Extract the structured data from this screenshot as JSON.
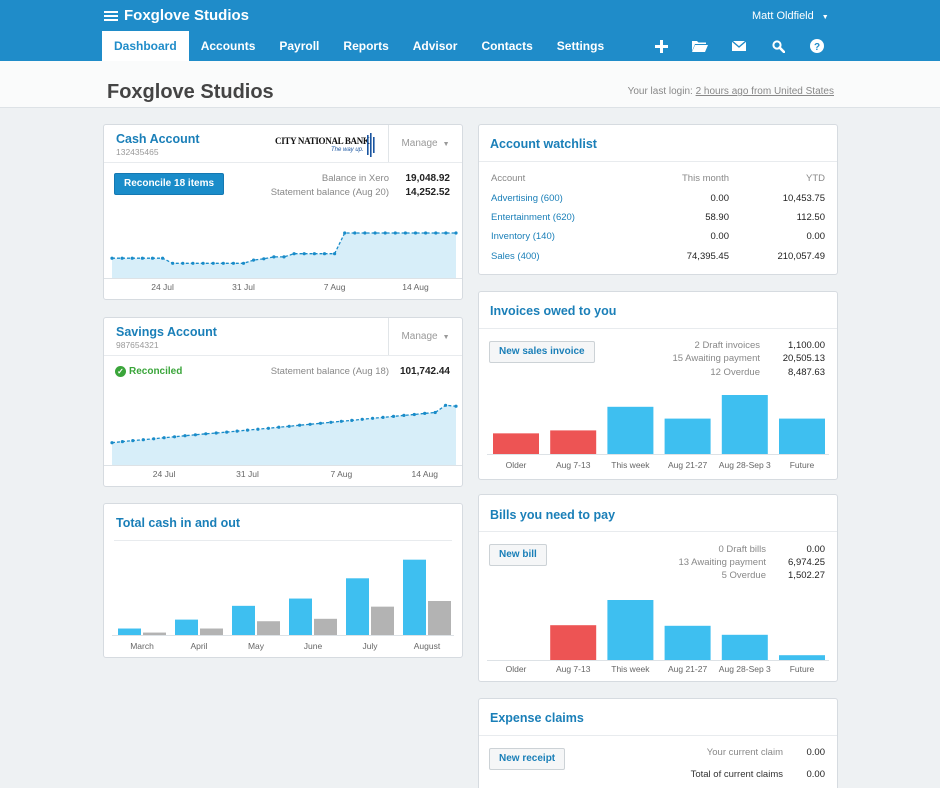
{
  "org": {
    "name": "Foxglove Studios"
  },
  "user": {
    "name": "Matt Oldfield"
  },
  "nav": [
    "Dashboard",
    "Accounts",
    "Payroll",
    "Reports",
    "Advisor",
    "Contacts",
    "Settings"
  ],
  "icons": [
    "plus-icon",
    "folder-icon",
    "mail-icon",
    "search-icon",
    "help-icon"
  ],
  "page": {
    "title": "Foxglove Studios",
    "last_login_prefix": "Your last login: ",
    "last_login_link": "2 hours ago from United States"
  },
  "cash_account": {
    "title": "Cash Account",
    "number": "132435465",
    "bank_name": "CITY NATIONAL BANK",
    "bank_tagline": "The way up.",
    "manage": "Manage",
    "reconcile_button": "Reconcile 18 items",
    "balance_label": "Balance in Xero",
    "balance_value": "19,048.92",
    "statement_label": "Statement balance (Aug 20)",
    "statement_value": "14,252.52",
    "chart_data": {
      "type": "area",
      "series": [
        {
          "values": [
            11200,
            11200,
            11200,
            11200,
            11200,
            11200,
            9600,
            9600,
            9600,
            9600,
            9600,
            9600,
            9600,
            9600,
            10600,
            11000,
            11600,
            11600,
            12600,
            12600,
            12600,
            12600,
            12600,
            19048,
            19048,
            19048,
            19048,
            19048,
            19048,
            19048,
            19048,
            19048,
            19048,
            19048,
            19048
          ]
        }
      ],
      "ticks": [
        "24 Jul",
        "31 Jul",
        "7 Aug",
        "14 Aug"
      ],
      "tick_index": [
        5,
        13,
        22,
        30
      ]
    }
  },
  "savings_account": {
    "title": "Savings Account",
    "number": "987654321",
    "manage": "Manage",
    "status": "Reconciled",
    "statement_label": "Statement balance (Aug 18)",
    "statement_value": "101,742.44",
    "chart_data": {
      "type": "area",
      "series": [
        {
          "values": [
            57000,
            57800,
            58600,
            59300,
            60000,
            60800,
            61500,
            62300,
            63000,
            63800,
            64400,
            65100,
            65800,
            66600,
            67300,
            68000,
            68800,
            69500,
            70300,
            71000,
            71800,
            72500,
            73300,
            74000,
            74800,
            75600,
            76300,
            77000,
            77800,
            78500,
            79300,
            80000,
            85500,
            84800
          ]
        }
      ],
      "ticks": [
        "24 Jul",
        "31 Jul",
        "7 Aug",
        "14 Aug"
      ],
      "tick_index": [
        5,
        13,
        22,
        30
      ]
    }
  },
  "total_cash": {
    "title": "Total cash in and out",
    "chart_data": {
      "type": "bar",
      "categories": [
        "March",
        "April",
        "May",
        "June",
        "July",
        "August"
      ],
      "series": [
        {
          "values": [
            8,
            19,
            36,
            45,
            70,
            93
          ]
        },
        {
          "values": [
            3,
            8,
            17,
            20,
            35,
            42
          ]
        }
      ],
      "ylim": [
        0,
        100
      ]
    }
  },
  "watchlist": {
    "title": "Account watchlist",
    "headers": [
      "Account",
      "This month",
      "YTD"
    ],
    "rows": [
      {
        "account": "Advertising (600)",
        "month": "0.00",
        "ytd": "10,453.75"
      },
      {
        "account": "Entertainment (620)",
        "month": "58.90",
        "ytd": "112.50"
      },
      {
        "account": "Inventory (140)",
        "month": "0.00",
        "ytd": "0.00"
      },
      {
        "account": "Sales (400)",
        "month": "74,395.45",
        "ytd": "210,057.49"
      }
    ]
  },
  "invoices": {
    "title": "Invoices owed to you",
    "button": "New sales invoice",
    "stats": [
      {
        "label": "2 Draft invoices",
        "value": "1,100.00"
      },
      {
        "label": "15 Awaiting payment",
        "value": "20,505.13"
      },
      {
        "label": "12 Overdue",
        "value": "8,487.63"
      }
    ],
    "chart_data": {
      "type": "bar",
      "categories": [
        "Older",
        "Aug 7-13",
        "This week",
        "Aug 21-27",
        "Aug 28-Sep 3",
        "Future"
      ],
      "values": [
        35,
        40,
        80,
        60,
        100,
        60
      ],
      "overdue_count": 2
    }
  },
  "bills": {
    "title": "Bills you need to pay",
    "button": "New bill",
    "stats": [
      {
        "label": "0 Draft bills",
        "value": "0.00"
      },
      {
        "label": "13 Awaiting payment",
        "value": "6,974.25"
      },
      {
        "label": "5 Overdue",
        "value": "1,502.27"
      }
    ],
    "chart_data": {
      "type": "bar",
      "categories": [
        "Older",
        "Aug 7-13",
        "This week",
        "Aug 21-27",
        "Aug 28-Sep 3",
        "Future"
      ],
      "values": [
        0,
        58,
        100,
        57,
        42,
        8
      ],
      "overdue_count": 2
    }
  },
  "expenses": {
    "title": "Expense claims",
    "button": "New receipt",
    "current_label": "Your current claim",
    "current_value": "0.00",
    "total_label": "Total of current claims",
    "total_value": "0.00"
  },
  "colors": {
    "brand": "#1f8cc9",
    "bar_blue": "#3ebff0",
    "bar_grey": "#b3b3b3",
    "bar_red": "#ed5454",
    "area_fill": "#d7eef9",
    "line": "#1a8cc9",
    "reconciled": "#3aa53a"
  }
}
